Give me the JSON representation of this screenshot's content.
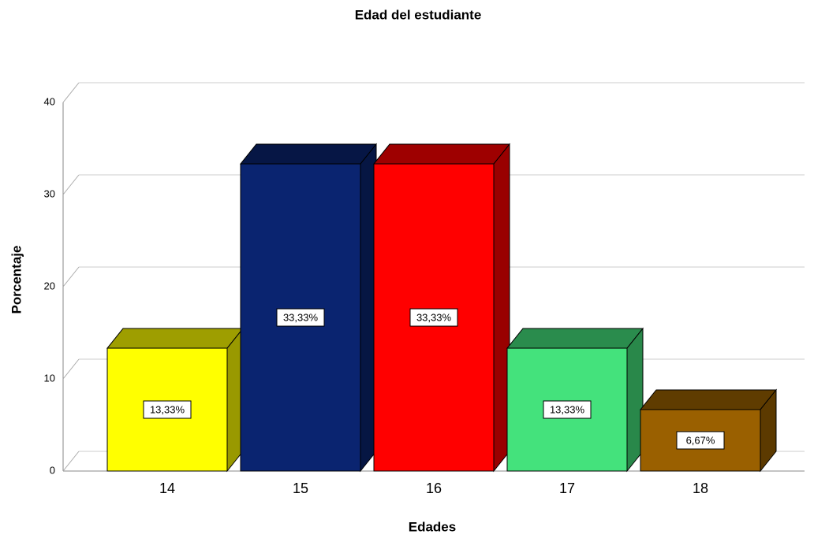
{
  "chart_data": {
    "type": "bar3d",
    "title": "Edad del estudiante",
    "x_label": "Edades",
    "y_label": "Porcentaje",
    "categories": [
      "14",
      "15",
      "16",
      "17",
      "18"
    ],
    "values": [
      13.33,
      33.33,
      33.33,
      13.33,
      6.67
    ],
    "value_labels": [
      "13,33%",
      "33,33%",
      "33,33%",
      "13,33%",
      "6,67%"
    ],
    "colors": [
      "#ffff00",
      "#0a2470",
      "#ff0000",
      "#44e27c",
      "#9a6000"
    ],
    "ylim": [
      0,
      40
    ],
    "yticks": [
      0,
      10,
      20,
      30,
      40
    ],
    "grid": true
  }
}
